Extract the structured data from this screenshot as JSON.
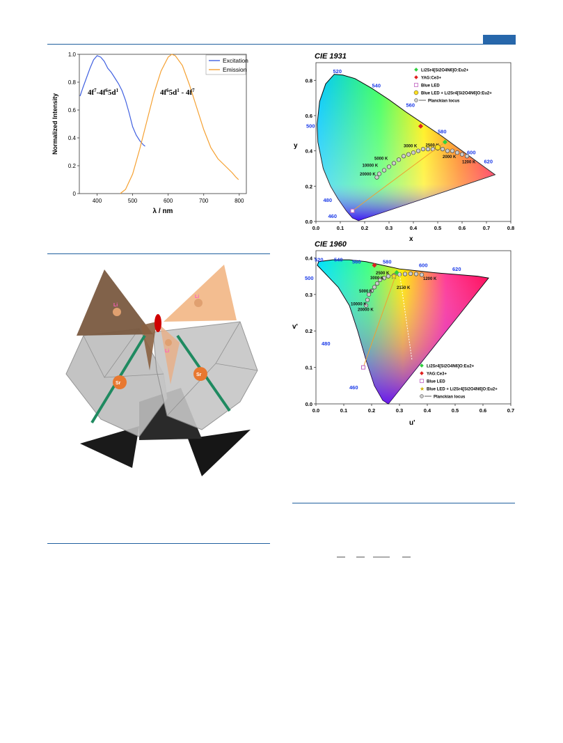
{
  "spectrum_figure": {
    "chart_data": {
      "type": "line",
      "xlabel": "λ / nm",
      "ylabel": "Normalized Intensity",
      "xlim": [
        350,
        820
      ],
      "ylim": [
        0,
        1.0
      ],
      "x_ticks": [
        "400",
        "500",
        "600",
        "700",
        "800"
      ],
      "y_ticks": [
        "0",
        "0.2",
        "0.4",
        "0.6",
        "0.8",
        "1.0"
      ],
      "legend": "top-right",
      "series": [
        {
          "name": "Excitation",
          "color": "#4060e0",
          "x": [
            352,
            360,
            370,
            380,
            390,
            400,
            410,
            420,
            430,
            440,
            450,
            460,
            470,
            480,
            490,
            500,
            510,
            520,
            530,
            535
          ],
          "y": [
            0.7,
            0.76,
            0.83,
            0.9,
            0.96,
            0.99,
            0.98,
            0.95,
            0.9,
            0.87,
            0.83,
            0.79,
            0.74,
            0.67,
            0.58,
            0.48,
            0.42,
            0.38,
            0.35,
            0.34
          ]
        },
        {
          "name": "Emission",
          "color": "#f5a030",
          "x": [
            465,
            480,
            500,
            520,
            540,
            560,
            580,
            600,
            610,
            620,
            640,
            660,
            680,
            700,
            720,
            740,
            760,
            780,
            790,
            798
          ],
          "y": [
            0.0,
            0.03,
            0.14,
            0.32,
            0.52,
            0.72,
            0.88,
            0.98,
            1.0,
            0.99,
            0.92,
            0.78,
            0.62,
            0.46,
            0.33,
            0.25,
            0.2,
            0.15,
            0.12,
            0.1
          ]
        }
      ],
      "annotations": [
        "4f7-4f65d1",
        "4f65d1 - 4f7"
      ]
    }
  },
  "cie1931": {
    "chart_data": {
      "type": "scatter",
      "title": "CIE 1931",
      "xlabel": "x",
      "ylabel": "y",
      "xlim": [
        0.0,
        0.8
      ],
      "ylim": [
        0.0,
        0.9
      ],
      "x_ticks": [
        "0.0",
        "0.1",
        "0.2",
        "0.3",
        "0.4",
        "0.5",
        "0.6",
        "0.7",
        "0.8"
      ],
      "y_ticks": [
        "0.0",
        "0.2",
        "0.4",
        "0.6",
        "0.8"
      ],
      "wavelength_labels": [
        {
          "text": "520",
          "x": 0.07,
          "y": 0.84
        },
        {
          "text": "540",
          "x": 0.23,
          "y": 0.76
        },
        {
          "text": "560",
          "x": 0.37,
          "y": 0.65
        },
        {
          "text": "580",
          "x": 0.5,
          "y": 0.5
        },
        {
          "text": "500",
          "x": -0.04,
          "y": 0.53
        },
        {
          "text": "600",
          "x": 0.62,
          "y": 0.38
        },
        {
          "text": "620",
          "x": 0.69,
          "y": 0.33
        },
        {
          "text": "480",
          "x": 0.03,
          "y": 0.11
        },
        {
          "text": "460",
          "x": 0.05,
          "y": 0.02
        }
      ],
      "cct_labels": [
        "10000 K",
        "20000 K",
        "5000 K",
        "3000 K",
        "2500 K",
        "2000 K",
        "1200 K"
      ],
      "points": [
        {
          "name": "LiSr phosphor",
          "x": 0.53,
          "y": 0.45,
          "color": "#30d040"
        },
        {
          "name": "YAG",
          "x": 0.43,
          "y": 0.54,
          "color": "#e02020"
        },
        {
          "name": "Blue LED",
          "x": 0.15,
          "y": 0.06,
          "color": "#c060c0"
        },
        {
          "name": "Blue LED + phosphor",
          "x": 0.5,
          "y": 0.42,
          "color": "#ffe020"
        }
      ],
      "legend": {
        "labels": [
          "Li2Sr4[Si2O4N6]O:Eu2+",
          "YAG:Ce3+",
          "Blue LED",
          "Blue LED + Li2Sr4[Si2O4N6]O:Eu2+",
          "Planckian locus"
        ]
      }
    }
  },
  "cie1960": {
    "chart_data": {
      "type": "scatter",
      "title": "CIE 1960",
      "xlabel": "u'",
      "ylabel": "v'",
      "xlim": [
        0.0,
        0.7
      ],
      "ylim": [
        0.0,
        0.42
      ],
      "x_ticks": [
        "0.0",
        "0.1",
        "0.2",
        "0.3",
        "0.4",
        "0.5",
        "0.6",
        "0.7"
      ],
      "y_ticks": [
        "0.0",
        "0.1",
        "0.2",
        "0.3",
        "0.4"
      ],
      "cct_labels": [
        "2500 K",
        "3000 K",
        "5000 K",
        "10000 K",
        "20000 K",
        "2150 K",
        "1200 K"
      ],
      "points": [
        {
          "name": "LiSr phosphor",
          "x": 0.29,
          "y": 0.36,
          "color": "#30d040"
        },
        {
          "name": "YAG",
          "x": 0.21,
          "y": 0.38,
          "color": "#e02020"
        },
        {
          "name": "Blue LED",
          "x": 0.17,
          "y": 0.1,
          "color": "#c060c0"
        },
        {
          "name": "Blue LED + phosphor",
          "x": 0.28,
          "y": 0.35,
          "color": "#ffe020"
        }
      ],
      "legend": {
        "labels": [
          "Li2Sr4[Si2O4N6]O:Eu2+",
          "YAG:Ce3+",
          "Blue LED",
          "Blue LED + Li2Sr4[Si2O4N6]O:Eu2+",
          "Planckian locus"
        ]
      }
    }
  },
  "structure": {
    "labels": [
      "Li",
      "Li",
      "Li",
      "Sr",
      "Sr"
    ]
  }
}
